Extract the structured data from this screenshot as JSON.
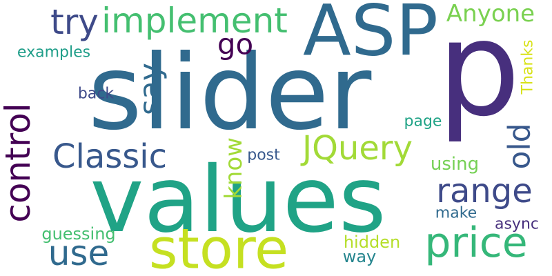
{
  "words": [
    {
      "id": "p",
      "text": "p",
      "color": "#472f7d"
    },
    {
      "id": "slider",
      "text": "slider",
      "color": "#306a8e"
    },
    {
      "id": "values",
      "text": "values",
      "color": "#20a386"
    },
    {
      "id": "asp",
      "text": "ASP",
      "color": "#306a8e"
    },
    {
      "id": "store",
      "text": "store",
      "color": "#c5e021"
    },
    {
      "id": "price",
      "text": "price",
      "color": "#35b779"
    },
    {
      "id": "control",
      "text": "control",
      "color": "#440154"
    },
    {
      "id": "implement",
      "text": "implement",
      "color": "#44bf70"
    },
    {
      "id": "classic",
      "text": "Classic",
      "color": "#38588c"
    },
    {
      "id": "jquery",
      "text": "JQuery",
      "color": "#a2da37"
    },
    {
      "id": "range",
      "text": "range",
      "color": "#3e4a89"
    },
    {
      "id": "try",
      "text": "try",
      "color": "#3e4a89"
    },
    {
      "id": "anyone",
      "text": "Anyone",
      "color": "#7ad151"
    },
    {
      "id": "use",
      "text": "use",
      "color": "#306a8e"
    },
    {
      "id": "go",
      "text": "go",
      "color": "#440154"
    },
    {
      "id": "say",
      "text": "say",
      "color": "#306a8e"
    },
    {
      "id": "old",
      "text": "old",
      "color": "#38588c"
    },
    {
      "id": "know",
      "text": "know",
      "color": "#a2da37"
    },
    {
      "id": "examples",
      "text": "examples",
      "color": "#1f9e89"
    },
    {
      "id": "thanks",
      "text": "Thanks",
      "color": "#d8e219"
    },
    {
      "id": "back",
      "text": "back",
      "color": "#3e4a89"
    },
    {
      "id": "post",
      "text": "post",
      "color": "#38588c"
    },
    {
      "id": "using",
      "text": "using",
      "color": "#75d054"
    },
    {
      "id": "page",
      "text": "page",
      "color": "#20a386"
    },
    {
      "id": "guessing",
      "text": "guessing",
      "color": "#44bf70"
    },
    {
      "id": "hidden",
      "text": "hidden",
      "color": "#b5de2b"
    },
    {
      "id": "way",
      "text": "way",
      "color": "#25858e"
    },
    {
      "id": "make",
      "text": "make",
      "color": "#306a8e"
    },
    {
      "id": "async",
      "text": "async",
      "color": "#472f7d"
    }
  ]
}
